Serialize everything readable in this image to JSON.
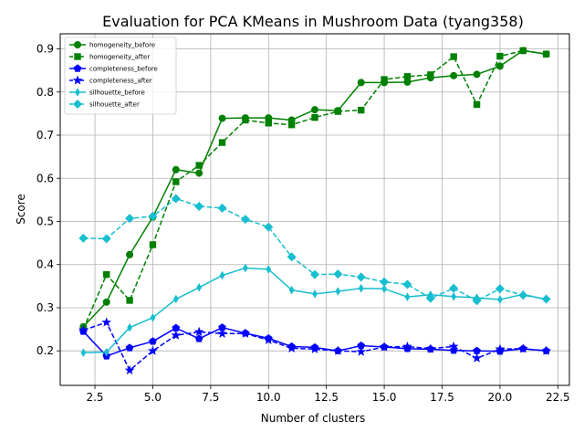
{
  "chart_data": {
    "type": "line",
    "title": "Evaluation for PCA KMeans in Mushroom Data (tyang358)",
    "xlabel": "Number of clusters",
    "ylabel": "Score",
    "xlim": [
      1.0,
      23.0
    ],
    "ylim": [
      0.12,
      0.935
    ],
    "xticks": [
      2.5,
      5.0,
      7.5,
      10.0,
      12.5,
      15.0,
      17.5,
      20.0,
      22.5
    ],
    "xtick_labels": [
      "2.5",
      "5.0",
      "7.5",
      "10.0",
      "12.5",
      "15.0",
      "17.5",
      "20.0",
      "22.5"
    ],
    "yticks": [
      0.2,
      0.3,
      0.4,
      0.5,
      0.6,
      0.7,
      0.8,
      0.9
    ],
    "ytick_labels": [
      "0.2",
      "0.3",
      "0.4",
      "0.5",
      "0.6",
      "0.7",
      "0.8",
      "0.9"
    ],
    "grid": true,
    "legend_position": "top-left",
    "x": [
      2,
      3,
      4,
      5,
      6,
      7,
      8,
      9,
      10,
      11,
      12,
      13,
      14,
      15,
      16,
      17,
      18,
      19,
      20,
      21,
      22
    ],
    "series": [
      {
        "name": "homogeneity_before",
        "color": "#008000",
        "line_style": "solid",
        "marker": "circle",
        "values": [
          0.256,
          0.313,
          0.423,
          0.51,
          0.62,
          0.612,
          0.739,
          0.74,
          0.74,
          0.735,
          0.759,
          0.757,
          0.822,
          0.822,
          0.823,
          0.833,
          0.838,
          0.841,
          0.86,
          0.896,
          0.888
        ]
      },
      {
        "name": "homogeneity_after",
        "color": "#008000",
        "line_style": "dashed",
        "marker": "square",
        "values": [
          0.25,
          0.377,
          0.317,
          0.446,
          0.592,
          0.63,
          0.683,
          0.735,
          0.728,
          0.724,
          0.741,
          0.755,
          0.758,
          0.829,
          0.836,
          0.84,
          0.882,
          0.771,
          0.883,
          0.896,
          0.888
        ]
      },
      {
        "name": "completeness_before",
        "color": "#0000ff",
        "line_style": "solid",
        "marker": "pentagon",
        "values": [
          0.245,
          0.188,
          0.207,
          0.222,
          0.253,
          0.228,
          0.254,
          0.241,
          0.229,
          0.21,
          0.208,
          0.2,
          0.212,
          0.209,
          0.205,
          0.204,
          0.201,
          0.2,
          0.199,
          0.205,
          0.2
        ]
      },
      {
        "name": "completeness_after",
        "color": "#0000ff",
        "line_style": "dashed",
        "marker": "star",
        "values": [
          0.248,
          0.266,
          0.155,
          0.2,
          0.236,
          0.244,
          0.24,
          0.24,
          0.225,
          0.206,
          0.204,
          0.2,
          0.198,
          0.209,
          0.21,
          0.205,
          0.21,
          0.183,
          0.204,
          0.205,
          0.2
        ]
      },
      {
        "name": "silhouette_before",
        "color": "#17becf",
        "line_style": "solid",
        "marker": "thin_diamond",
        "values": [
          0.196,
          0.197,
          0.254,
          0.277,
          0.32,
          0.347,
          0.375,
          0.392,
          0.389,
          0.341,
          0.332,
          0.338,
          0.345,
          0.344,
          0.325,
          0.33,
          0.326,
          0.323,
          0.319,
          0.331,
          0.319
        ]
      },
      {
        "name": "silhouette_after",
        "color": "#17becf",
        "line_style": "dashed",
        "marker": "diamond",
        "values": [
          0.461,
          0.46,
          0.507,
          0.512,
          0.553,
          0.535,
          0.531,
          0.505,
          0.487,
          0.418,
          0.377,
          0.378,
          0.371,
          0.36,
          0.354,
          0.322,
          0.345,
          0.316,
          0.344,
          0.329,
          0.32
        ]
      }
    ]
  }
}
